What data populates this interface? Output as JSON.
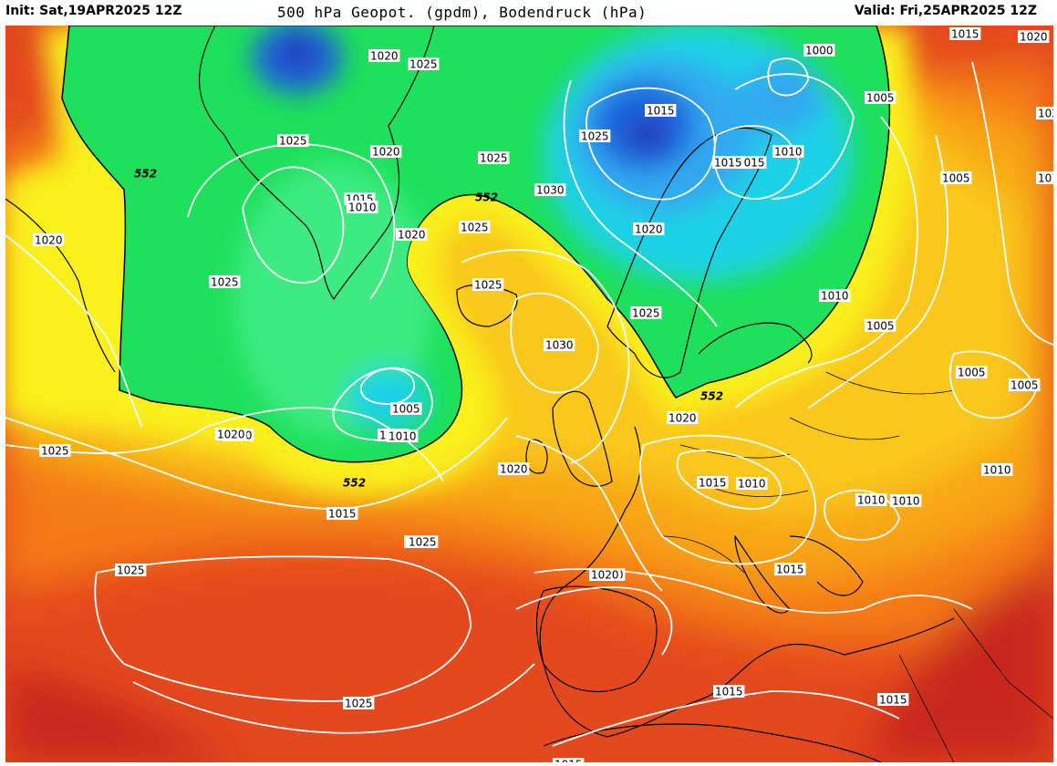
{
  "header": {
    "init": "Init: Sat,19APR2025 12Z",
    "title": "500 hPa Geopot. (gpdm), Bodendruck (hPa)",
    "valid": "Valid: Fri,25APR2025 12Z"
  },
  "colors": {
    "deep_red": "#c8281e",
    "red_orange": "#e4491e",
    "orange": "#f47a16",
    "light_orange": "#f8a418",
    "gold": "#fac81e",
    "yellow": "#faf01e",
    "green": "#1ee05a",
    "light_green": "#3ceb82",
    "cyan": "#1ed2e6",
    "light_blue": "#32a8f0",
    "blue": "#1e64dc",
    "dark_blue": "#2832b4",
    "isobar": "#ffffff",
    "coast": "#000000"
  },
  "map": {
    "boundary_label": "552",
    "isobar_labels": [
      "1020",
      "1025",
      "1025",
      "1020",
      "1015",
      "1010",
      "1020",
      "1015",
      "1025",
      "1025",
      "1030",
      "1025",
      "1020",
      "1015",
      "1025",
      "1000",
      "1005",
      "1010",
      "1015",
      "1020",
      "1025",
      "1005",
      "1015",
      "1010",
      "1005",
      "1005",
      "1005",
      "1020",
      "1025",
      "1025",
      "1030",
      "1005",
      "1010",
      "1020",
      "1015",
      "1025",
      "1020",
      "1020",
      "1015",
      "1010",
      "1010",
      "1010",
      "1010",
      "1025",
      "1025",
      "1020",
      "1015",
      "1025",
      "1015",
      "1015",
      "1020",
      "1025",
      "1015",
      "1015",
      "101",
      "1010",
      "1020"
    ],
    "boundary_labels": [
      "552",
      "552",
      "552",
      "552"
    ]
  }
}
